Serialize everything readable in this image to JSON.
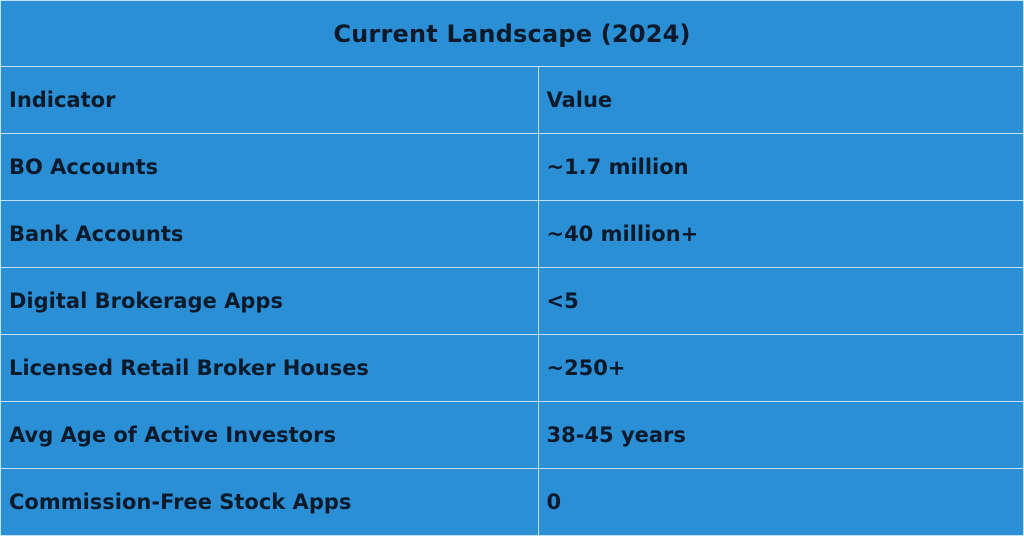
{
  "table": {
    "title": "Current Landscape (2024)",
    "headers": [
      "Indicator",
      "Value"
    ],
    "rows": [
      [
        "BO Accounts",
        "~1.7 million"
      ],
      [
        "Bank Accounts",
        "~40 million+"
      ],
      [
        "Digital Brokerage Apps",
        "<5"
      ],
      [
        "Licensed Retail Broker Houses",
        "~250+"
      ],
      [
        "Avg Age of Active Investors",
        "38-45 years"
      ],
      [
        "Commission-Free Stock Apps",
        "0"
      ]
    ]
  },
  "colors": {
    "background": "#2b8fd6",
    "grid_lines": "#bfe0f6",
    "text": "#0b1a2a"
  }
}
